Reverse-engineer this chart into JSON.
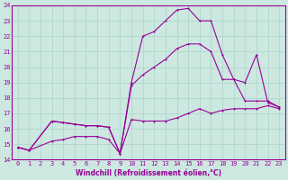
{
  "xlabel": "Windchill (Refroidissement éolien,°C)",
  "xlim": [
    -0.5,
    23.5
  ],
  "ylim": [
    14,
    24
  ],
  "yticks": [
    14,
    15,
    16,
    17,
    18,
    19,
    20,
    21,
    22,
    23,
    24
  ],
  "xticks": [
    0,
    1,
    2,
    3,
    4,
    5,
    6,
    7,
    8,
    9,
    10,
    11,
    12,
    13,
    14,
    15,
    16,
    17,
    18,
    19,
    20,
    21,
    22,
    23
  ],
  "bg_color": "#cce8e0",
  "grid_color": "#aad4c8",
  "line_color": "#990099",
  "line1_x": [
    0,
    1,
    3,
    4,
    5,
    6,
    7,
    8,
    9,
    10,
    11,
    12,
    13,
    14,
    15,
    16,
    17,
    18,
    19,
    20,
    21,
    22,
    23
  ],
  "line1_y": [
    14.8,
    14.6,
    15.2,
    15.3,
    15.5,
    15.5,
    15.5,
    15.3,
    14.4,
    16.6,
    16.5,
    16.5,
    16.5,
    16.7,
    17.0,
    17.3,
    17.0,
    17.2,
    17.3,
    17.3,
    17.3,
    17.5,
    17.3
  ],
  "line2_x": [
    0,
    1,
    3,
    4,
    5,
    6,
    7,
    8,
    9,
    10,
    11,
    12,
    13,
    14,
    15,
    16,
    17,
    18,
    19,
    20,
    21,
    22,
    23
  ],
  "line2_y": [
    14.8,
    14.6,
    16.5,
    16.4,
    16.3,
    16.2,
    16.2,
    16.1,
    14.4,
    19.0,
    22.0,
    22.3,
    23.0,
    23.7,
    23.8,
    23.0,
    23.0,
    20.8,
    19.2,
    17.8,
    17.8,
    17.8,
    17.4
  ],
  "line3_x": [
    0,
    1,
    3,
    4,
    5,
    6,
    7,
    8,
    9,
    10,
    11,
    12,
    13,
    14,
    15,
    16,
    17,
    18,
    19,
    20,
    21,
    22,
    23
  ],
  "line3_y": [
    14.8,
    14.6,
    16.5,
    16.4,
    16.3,
    16.2,
    16.2,
    16.1,
    14.4,
    18.8,
    19.5,
    20.0,
    20.5,
    21.2,
    21.5,
    21.5,
    21.0,
    19.2,
    19.2,
    19.0,
    20.8,
    17.7,
    17.4
  ]
}
